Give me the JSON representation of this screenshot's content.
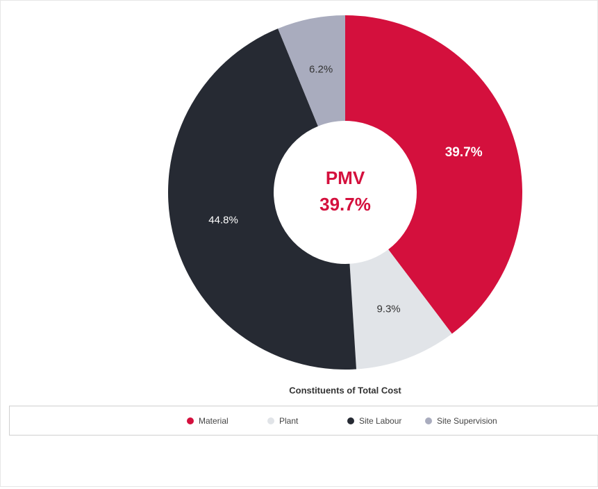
{
  "chart_data": {
    "type": "donut",
    "title": "Constituents of Total Cost",
    "categories": [
      "Material",
      "Plant",
      "Site Labour",
      "Site Supervision"
    ],
    "values": [
      39.7,
      9.3,
      44.8,
      6.2
    ],
    "value_labels": [
      "39.7%",
      "9.3%",
      "44.8%",
      "6.2%"
    ],
    "colors": [
      "#d4103d",
      "#e1e4e8",
      "#262a33",
      "#a9acbe"
    ],
    "highlight_index": 0,
    "center_title": "PMV",
    "center_value_label": "39.7%",
    "legend": "bottom"
  }
}
